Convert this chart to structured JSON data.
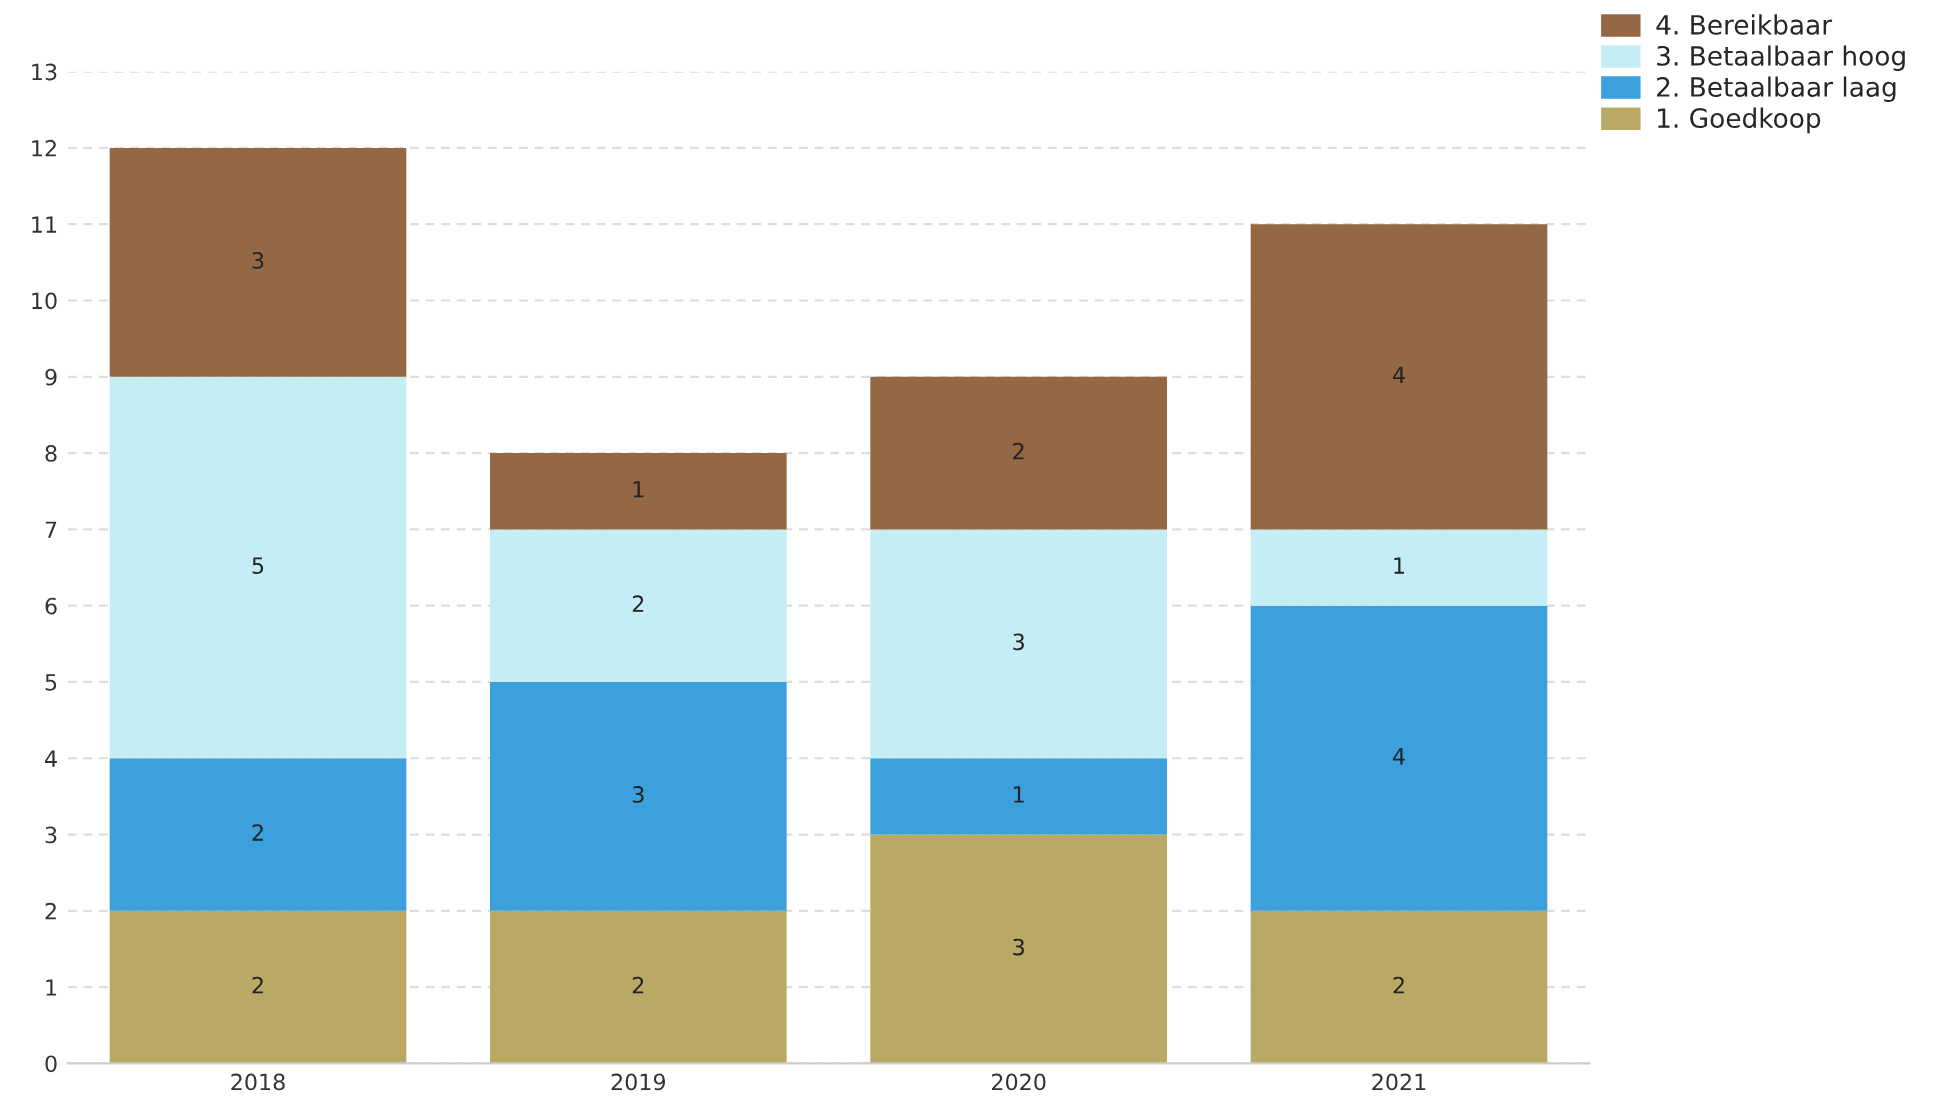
{
  "chart_data": {
    "type": "bar",
    "stacked": true,
    "categories": [
      "2018",
      "2019",
      "2020",
      "2021"
    ],
    "series": [
      {
        "name": "1. Goedkoop",
        "color": "#b9a965",
        "values": [
          2,
          2,
          3,
          2
        ]
      },
      {
        "name": "2. Betaalbaar laag",
        "color": "#3ba0dc",
        "values": [
          2,
          3,
          1,
          4
        ]
      },
      {
        "name": "3. Betaalbaar hoog",
        "color": "#c5edf5",
        "values": [
          5,
          2,
          3,
          1
        ]
      },
      {
        "name": "4. Bereikbaar",
        "color": "#946844",
        "values": [
          3,
          1,
          2,
          4
        ]
      }
    ],
    "ylim": [
      0,
      13
    ],
    "yticks": [
      0,
      1,
      2,
      3,
      4,
      5,
      6,
      7,
      8,
      9,
      10,
      11,
      12,
      13
    ],
    "grid": "y",
    "legend": "top right",
    "data_labels": true
  }
}
